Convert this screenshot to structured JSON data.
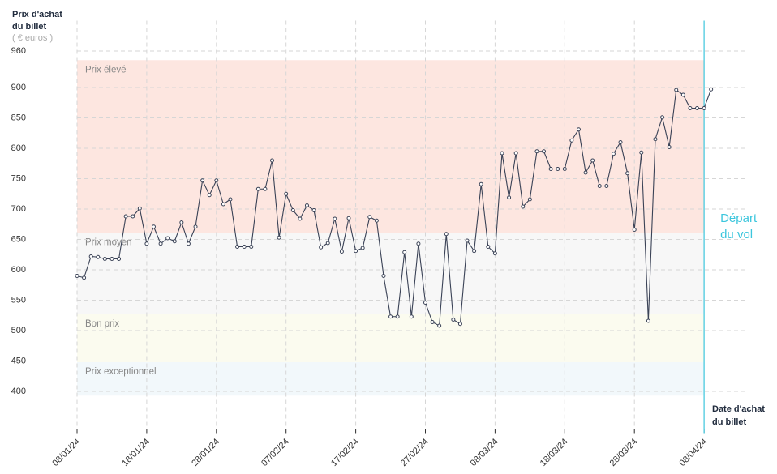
{
  "chart_data": {
    "type": "line",
    "ylabel": [
      "Prix d'achat",
      "du billet"
    ],
    "yunit": "( € euros )",
    "xlabel": [
      "Date d'achat",
      "du billet"
    ],
    "annotation": [
      "Départ",
      "du vol"
    ],
    "annotation_color": "#3cc6dd",
    "ylim": [
      330,
      1010
    ],
    "yticks": [
      400,
      450,
      500,
      550,
      600,
      650,
      700,
      750,
      800,
      850,
      900,
      960
    ],
    "grid": true,
    "bands": [
      {
        "label": "Prix élevé",
        "range": [
          661,
          945
        ],
        "color": "#fde6e0"
      },
      {
        "label": "Prix moyen",
        "range": [
          527,
          661
        ],
        "color": "#f7f7f7"
      },
      {
        "label": "Bon prix",
        "range": [
          448,
          527
        ],
        "color": "#fbfbef"
      },
      {
        "label": "Prix exceptionnel",
        "range": [
          393,
          448
        ],
        "color": "#f2f8fb"
      }
    ],
    "categories": [
      "08/01/24",
      null,
      null,
      null,
      null,
      null,
      null,
      null,
      null,
      null,
      "18/01/24",
      null,
      null,
      null,
      null,
      null,
      null,
      null,
      null,
      null,
      "28/01/24",
      null,
      null,
      null,
      null,
      null,
      null,
      null,
      null,
      null,
      "07/02/24",
      null,
      null,
      null,
      null,
      null,
      null,
      null,
      null,
      null,
      "17/02/24",
      null,
      null,
      null,
      null,
      null,
      null,
      null,
      null,
      null,
      "27/02/24",
      null,
      null,
      null,
      null,
      null,
      null,
      null,
      null,
      null,
      "08/03/24",
      null,
      null,
      null,
      null,
      null,
      null,
      null,
      null,
      null,
      "18/03/24",
      null,
      null,
      null,
      null,
      null,
      null,
      null,
      null,
      null,
      "28/03/24",
      null,
      null,
      null,
      null,
      null,
      null,
      null,
      null,
      null,
      "08/04/24",
      null
    ],
    "series": [
      {
        "color": "#3a4256",
        "values": [
          590,
          587,
          622,
          621,
          618,
          618,
          618,
          688,
          688,
          701,
          643,
          671,
          643,
          652,
          647,
          678,
          643,
          671,
          747,
          723,
          747,
          708,
          716,
          638,
          638,
          638,
          733,
          733,
          780,
          653,
          725,
          698,
          684,
          706,
          698,
          637,
          644,
          684,
          630,
          685,
          631,
          636,
          687,
          681,
          590,
          523,
          523,
          629,
          523,
          643,
          546,
          514,
          508,
          659,
          518,
          511,
          648,
          631,
          741,
          638,
          627,
          792,
          719,
          792,
          704,
          716,
          795,
          795,
          766,
          766,
          766,
          813,
          831,
          760,
          780,
          738,
          738,
          791,
          810,
          759,
          666,
          793,
          516,
          815,
          851,
          802,
          896,
          888,
          866,
          866,
          866,
          897
        ]
      }
    ]
  }
}
